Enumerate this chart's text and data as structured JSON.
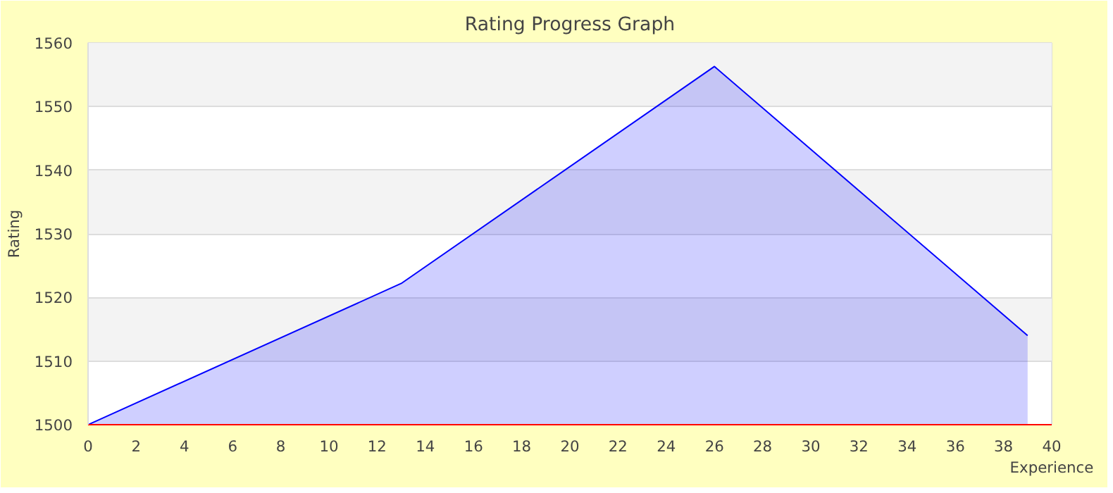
{
  "chart_data": {
    "type": "area",
    "title": "Rating Progress Graph",
    "xlabel": "Experience",
    "ylabel": "Rating",
    "x": [
      0,
      13,
      26,
      39
    ],
    "series": [
      {
        "color": "#0000ff",
        "values": [
          1500,
          1522.2,
          1556.3,
          1514
        ]
      }
    ],
    "xlim": [
      0,
      40
    ],
    "xticks": [
      0,
      2,
      4,
      6,
      8,
      10,
      12,
      14,
      16,
      18,
      20,
      22,
      24,
      26,
      28,
      30,
      32,
      34,
      36,
      38,
      40
    ],
    "ylim": [
      1500,
      1560
    ],
    "yticks": [
      1500,
      1510,
      1520,
      1530,
      1540,
      1550,
      1560
    ],
    "grid": "y"
  }
}
